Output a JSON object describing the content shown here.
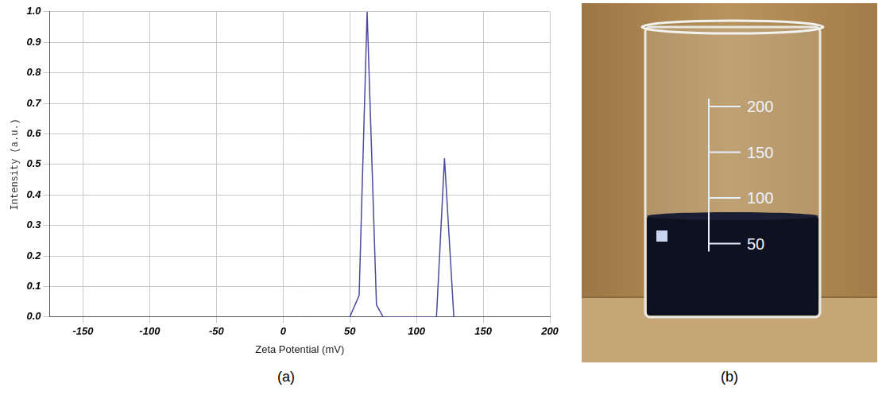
{
  "chart_data": {
    "type": "line",
    "x_label": "Zeta Potential (mV)",
    "y_label": "Intensity (a.u.)",
    "x": [
      50,
      57,
      63,
      70,
      75,
      115,
      121,
      128
    ],
    "values": [
      0.0,
      0.07,
      1.0,
      0.04,
      0.0,
      0.0,
      0.52,
      0.0
    ],
    "color": "#4b4b9e",
    "xlim": [
      -175,
      200
    ],
    "xticks": [
      -150,
      -100,
      -50,
      0,
      50,
      100,
      150,
      200
    ],
    "ylim": [
      0,
      1
    ],
    "yticks": [
      {
        "value": 0,
        "label": "0.0"
      },
      0.1,
      0.2,
      0.3,
      0.4,
      0.5,
      0.6,
      0.7,
      0.8,
      0.9,
      {
        "value": 1,
        "label": "1.0"
      }
    ],
    "grid": true
  },
  "panel_labels": [
    "(a)",
    "(b)"
  ],
  "photo": {
    "graduations": [
      50,
      100,
      150,
      200
    ]
  }
}
